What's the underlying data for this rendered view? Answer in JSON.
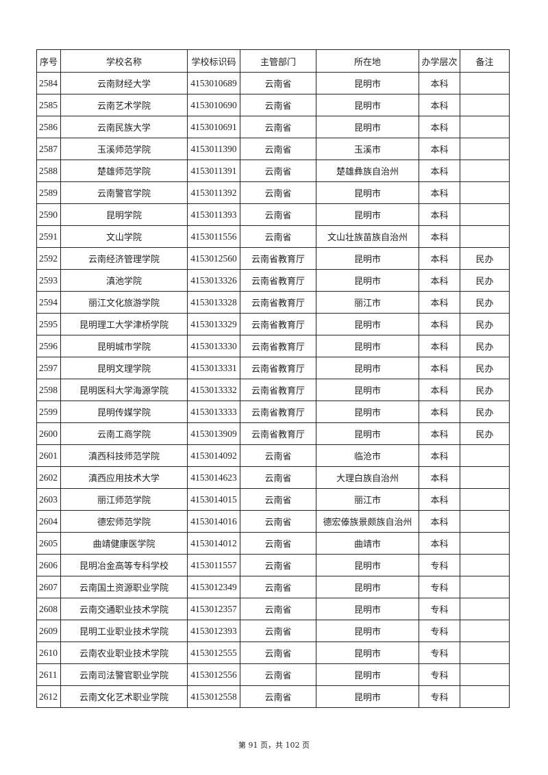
{
  "headers": [
    "序号",
    "学校名称",
    "学校标识码",
    "主管部门",
    "所在地",
    "办学层次",
    "备注"
  ],
  "rows": [
    [
      "2584",
      "云南财经大学",
      "4153010689",
      "云南省",
      "昆明市",
      "本科",
      ""
    ],
    [
      "2585",
      "云南艺术学院",
      "4153010690",
      "云南省",
      "昆明市",
      "本科",
      ""
    ],
    [
      "2586",
      "云南民族大学",
      "4153010691",
      "云南省",
      "昆明市",
      "本科",
      ""
    ],
    [
      "2587",
      "玉溪师范学院",
      "4153011390",
      "云南省",
      "玉溪市",
      "本科",
      ""
    ],
    [
      "2588",
      "楚雄师范学院",
      "4153011391",
      "云南省",
      "楚雄彝族自治州",
      "本科",
      ""
    ],
    [
      "2589",
      "云南警官学院",
      "4153011392",
      "云南省",
      "昆明市",
      "本科",
      ""
    ],
    [
      "2590",
      "昆明学院",
      "4153011393",
      "云南省",
      "昆明市",
      "本科",
      ""
    ],
    [
      "2591",
      "文山学院",
      "4153011556",
      "云南省",
      "文山壮族苗族自治州",
      "本科",
      ""
    ],
    [
      "2592",
      "云南经济管理学院",
      "4153012560",
      "云南省教育厅",
      "昆明市",
      "本科",
      "民办"
    ],
    [
      "2593",
      "滇池学院",
      "4153013326",
      "云南省教育厅",
      "昆明市",
      "本科",
      "民办"
    ],
    [
      "2594",
      "丽江文化旅游学院",
      "4153013328",
      "云南省教育厅",
      "丽江市",
      "本科",
      "民办"
    ],
    [
      "2595",
      "昆明理工大学津桥学院",
      "4153013329",
      "云南省教育厅",
      "昆明市",
      "本科",
      "民办"
    ],
    [
      "2596",
      "昆明城市学院",
      "4153013330",
      "云南省教育厅",
      "昆明市",
      "本科",
      "民办"
    ],
    [
      "2597",
      "昆明文理学院",
      "4153013331",
      "云南省教育厅",
      "昆明市",
      "本科",
      "民办"
    ],
    [
      "2598",
      "昆明医科大学海源学院",
      "4153013332",
      "云南省教育厅",
      "昆明市",
      "本科",
      "民办"
    ],
    [
      "2599",
      "昆明传媒学院",
      "4153013333",
      "云南省教育厅",
      "昆明市",
      "本科",
      "民办"
    ],
    [
      "2600",
      "云南工商学院",
      "4153013909",
      "云南省教育厅",
      "昆明市",
      "本科",
      "民办"
    ],
    [
      "2601",
      "滇西科技师范学院",
      "4153014092",
      "云南省",
      "临沧市",
      "本科",
      ""
    ],
    [
      "2602",
      "滇西应用技术大学",
      "4153014623",
      "云南省",
      "大理白族自治州",
      "本科",
      ""
    ],
    [
      "2603",
      "丽江师范学院",
      "4153014015",
      "云南省",
      "丽江市",
      "本科",
      ""
    ],
    [
      "2604",
      "德宏师范学院",
      "4153014016",
      "云南省",
      "德宏傣族景颇族自治州",
      "本科",
      ""
    ],
    [
      "2605",
      "曲靖健康医学院",
      "4153014012",
      "云南省",
      "曲靖市",
      "本科",
      ""
    ],
    [
      "2606",
      "昆明冶金高等专科学校",
      "4153011557",
      "云南省",
      "昆明市",
      "专科",
      ""
    ],
    [
      "2607",
      "云南国土资源职业学院",
      "4153012349",
      "云南省",
      "昆明市",
      "专科",
      ""
    ],
    [
      "2608",
      "云南交通职业技术学院",
      "4153012357",
      "云南省",
      "昆明市",
      "专科",
      ""
    ],
    [
      "2609",
      "昆明工业职业技术学院",
      "4153012393",
      "云南省",
      "昆明市",
      "专科",
      ""
    ],
    [
      "2610",
      "云南农业职业技术学院",
      "4153012555",
      "云南省",
      "昆明市",
      "专科",
      ""
    ],
    [
      "2611",
      "云南司法警官职业学院",
      "4153012556",
      "云南省",
      "昆明市",
      "专科",
      ""
    ],
    [
      "2612",
      "云南文化艺术职业学院",
      "4153012558",
      "云南省",
      "昆明市",
      "专科",
      ""
    ]
  ],
  "footer": "第 91 页，共 102 页"
}
